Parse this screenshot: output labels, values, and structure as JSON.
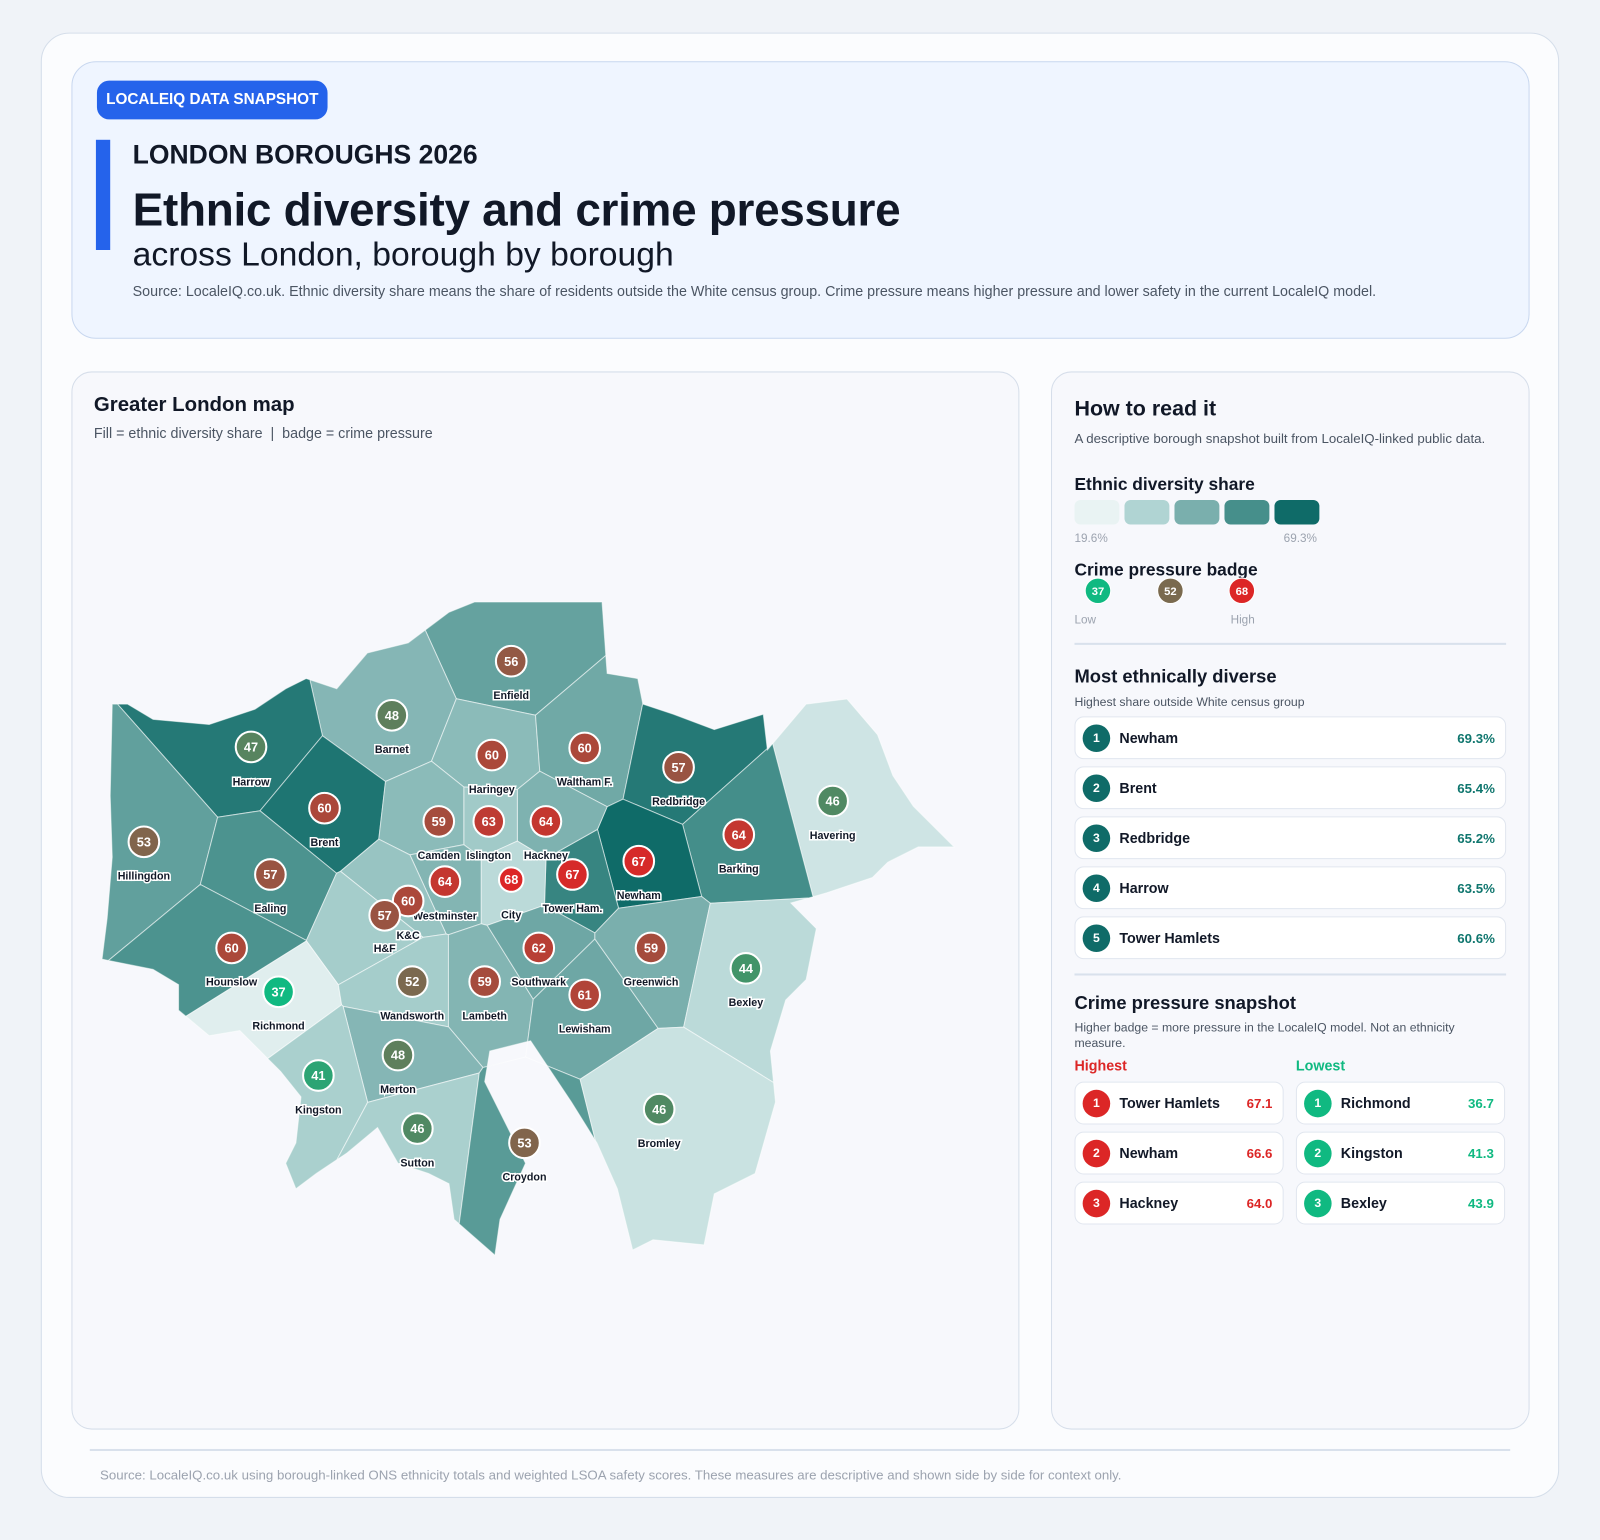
{
  "header": {
    "chip": "LOCALEIQ DATA SNAPSHOT",
    "kicker": "LONDON BOROUGHS 2026",
    "title": "Ethnic diversity and crime pressure",
    "subtitle": "across London, borough by borough",
    "source": "Source: LocaleIQ.co.uk. Ethnic diversity share means the share of residents outside the White census group. Crime pressure means higher pressure and lower safety in the current LocaleIQ model.",
    "accent": "#2563eb"
  },
  "map": {
    "title": "Greater London map",
    "subtitle": "Fill = ethnic diversity share  |  badge = crime pressure",
    "fill_scale": [
      "#e9f3f3",
      "#b0d4d3",
      "#7aafad",
      "#468f8b",
      "#0f6b68"
    ],
    "badge_scale": {
      "low": "#10b981",
      "mid": "#7a6a4f",
      "high": "#dc2626"
    },
    "boroughs": [
      {
        "name": "Enfield",
        "crime": 56,
        "diversity_fill": 0.6
      },
      {
        "name": "Barnet",
        "crime": 48,
        "diversity_fill": 0.45
      },
      {
        "name": "Harrow",
        "crime": 47,
        "diversity_fill": 0.9
      },
      {
        "name": "Brent",
        "crime": 60,
        "diversity_fill": 0.93
      },
      {
        "name": "Hillingdon",
        "crime": 53,
        "diversity_fill": 0.62
      },
      {
        "name": "Ealing",
        "crime": 57,
        "diversity_fill": 0.72
      },
      {
        "name": "Haringey",
        "crime": 60,
        "diversity_fill": 0.42
      },
      {
        "name": "Waltham F.",
        "crime": 60,
        "diversity_fill": 0.55
      },
      {
        "name": "Redbridge",
        "crime": 57,
        "diversity_fill": 0.9
      },
      {
        "name": "Havering",
        "crime": 46,
        "diversity_fill": 0.12
      },
      {
        "name": "Barking",
        "crime": 64,
        "diversity_fill": 0.76
      },
      {
        "name": "Newham",
        "crime": 67,
        "diversity_fill": 1.0
      },
      {
        "name": "Tower Ham.",
        "crime": 67,
        "diversity_fill": 0.82
      },
      {
        "name": "Hackney",
        "crime": 64,
        "diversity_fill": 0.48
      },
      {
        "name": "Islington",
        "crime": 63,
        "diversity_fill": 0.32
      },
      {
        "name": "Camden",
        "crime": 59,
        "diversity_fill": 0.42
      },
      {
        "name": "City",
        "crime": 68,
        "diversity_fill": 0.2
      },
      {
        "name": "Westminster",
        "crime": 64,
        "diversity_fill": 0.46
      },
      {
        "name": "K&C",
        "crime": 60,
        "diversity_fill": 0.36
      },
      {
        "name": "H&F",
        "crime": 57,
        "diversity_fill": 0.3
      },
      {
        "name": "Hounslow",
        "crime": 60,
        "diversity_fill": 0.72
      },
      {
        "name": "Richmond",
        "crime": 37,
        "diversity_fill": 0.04
      },
      {
        "name": "Wandsworth",
        "crime": 52,
        "diversity_fill": 0.3
      },
      {
        "name": "Lambeth",
        "crime": 59,
        "diversity_fill": 0.46
      },
      {
        "name": "Southwark",
        "crime": 62,
        "diversity_fill": 0.56
      },
      {
        "name": "Lewisham",
        "crime": 61,
        "diversity_fill": 0.56
      },
      {
        "name": "Greenwich",
        "crime": 59,
        "diversity_fill": 0.5
      },
      {
        "name": "Bexley",
        "crime": 44,
        "diversity_fill": 0.2
      },
      {
        "name": "Merton",
        "crime": 48,
        "diversity_fill": 0.45
      },
      {
        "name": "Kingston",
        "crime": 41,
        "diversity_fill": 0.28
      },
      {
        "name": "Sutton",
        "crime": 46,
        "diversity_fill": 0.28
      },
      {
        "name": "Croydon",
        "crime": 53,
        "diversity_fill": 0.66
      },
      {
        "name": "Bromley",
        "crime": 46,
        "diversity_fill": 0.14
      }
    ]
  },
  "side": {
    "title": "How to read it",
    "intro": "A descriptive borough snapshot built from LocaleIQ-linked public data.",
    "diversity_legend": {
      "title": "Ethnic diversity share",
      "min": "19.6%",
      "max": "69.3%"
    },
    "crime_legend": {
      "title": "Crime pressure badge",
      "badges": [
        "37",
        "52",
        "68"
      ],
      "low": "Low",
      "high": "High"
    },
    "diverse": {
      "title": "Most ethnically diverse",
      "subtitle": "Highest share outside White census group",
      "rows": [
        {
          "rank": "1",
          "name": "Newham",
          "value": "69.3%"
        },
        {
          "rank": "2",
          "name": "Brent",
          "value": "65.4%"
        },
        {
          "rank": "3",
          "name": "Redbridge",
          "value": "65.2%"
        },
        {
          "rank": "4",
          "name": "Harrow",
          "value": "63.5%"
        },
        {
          "rank": "5",
          "name": "Tower Hamlets",
          "value": "60.6%"
        }
      ]
    },
    "crime": {
      "title": "Crime pressure snapshot",
      "subtitle": "Higher badge = more pressure in the LocaleIQ model. Not an ethnicity measure.",
      "highest_label": "Highest",
      "lowest_label": "Lowest",
      "highest": [
        {
          "rank": "1",
          "name": "Tower Hamlets",
          "value": "67.1"
        },
        {
          "rank": "2",
          "name": "Newham",
          "value": "66.6"
        },
        {
          "rank": "3",
          "name": "Hackney",
          "value": "64.0"
        }
      ],
      "lowest": [
        {
          "rank": "1",
          "name": "Richmond",
          "value": "36.7"
        },
        {
          "rank": "2",
          "name": "Kingston",
          "value": "41.3"
        },
        {
          "rank": "3",
          "name": "Bexley",
          "value": "43.9"
        }
      ]
    }
  },
  "footer": "Source: LocaleIQ.co.uk using borough-linked ONS ethnicity totals and weighted LSOA safety scores. These measures are descriptive and shown side by side for context only."
}
